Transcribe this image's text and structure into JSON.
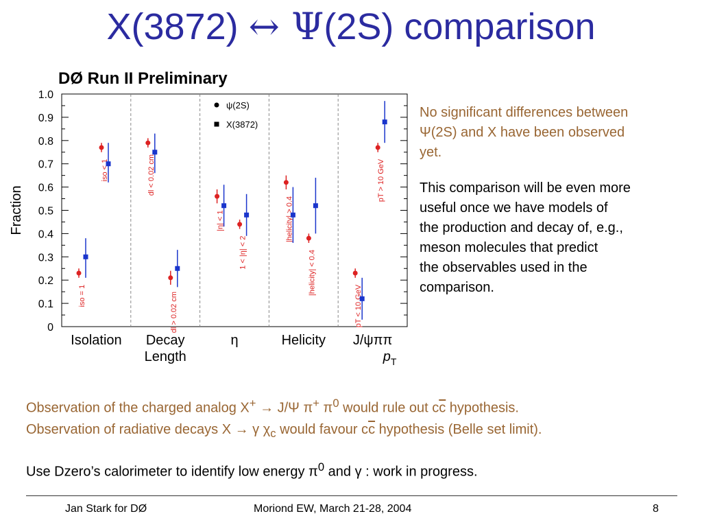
{
  "title": {
    "left": "X(3872) ",
    "arrow": "↔",
    "psi": " Ψ",
    "right": "(2S) comparison"
  },
  "colors": {
    "title": "#2b2ba0",
    "psi2s": "#dd2222",
    "x3872": "#1a35cc",
    "note": "#996633"
  },
  "chart_data": {
    "type": "scatter",
    "title": "DØ Run II Preliminary",
    "ylabel": "Fraction",
    "ylim": [
      0,
      1
    ],
    "yticks": [
      "0",
      "0.1",
      "0.2",
      "0.3",
      "0.4",
      "0.5",
      "0.6",
      "0.7",
      "0.8",
      "0.9",
      "1.0"
    ],
    "categories": [
      {
        "label1": "Isolation",
        "label2": ""
      },
      {
        "label1": "Decay",
        "label2": "Length"
      },
      {
        "label1": "η",
        "label2": ""
      },
      {
        "label1": "Helicity",
        "label2": ""
      },
      {
        "label1": "J/ψππ",
        "label2": "p",
        "label2_sub": "T"
      }
    ],
    "legend": [
      {
        "name": "ψ(2S)",
        "marker": "circle"
      },
      {
        "name": "X(3872)",
        "marker": "square"
      }
    ],
    "points": [
      {
        "series": "ψ(2S)",
        "cat": 0,
        "sub": 0,
        "y": 0.23,
        "err": [
          0.02,
          0.02
        ],
        "label": "iso = 1"
      },
      {
        "series": "X(3872)",
        "cat": 0,
        "sub": 1,
        "y": 0.3,
        "err": [
          0.09,
          0.08
        ],
        "label": ""
      },
      {
        "series": "ψ(2S)",
        "cat": 0,
        "sub": 2,
        "y": 0.77,
        "err": [
          0.02,
          0.02
        ],
        "label": "iso < 1"
      },
      {
        "series": "X(3872)",
        "cat": 0,
        "sub": 3,
        "y": 0.7,
        "err": [
          0.08,
          0.09
        ],
        "label": ""
      },
      {
        "series": "ψ(2S)",
        "cat": 1,
        "sub": 0,
        "y": 0.79,
        "err": [
          0.02,
          0.02
        ],
        "label": "dl < 0.02 cm"
      },
      {
        "series": "X(3872)",
        "cat": 1,
        "sub": 1,
        "y": 0.75,
        "err": [
          0.09,
          0.08
        ],
        "label": ""
      },
      {
        "series": "ψ(2S)",
        "cat": 1,
        "sub": 2,
        "y": 0.21,
        "err": [
          0.03,
          0.03
        ],
        "label": "dl > 0.02 cm"
      },
      {
        "series": "X(3872)",
        "cat": 1,
        "sub": 3,
        "y": 0.25,
        "err": [
          0.08,
          0.08
        ],
        "label": ""
      },
      {
        "series": "ψ(2S)",
        "cat": 2,
        "sub": 0,
        "y": 0.56,
        "err": [
          0.03,
          0.03
        ],
        "label": "|η| < 1"
      },
      {
        "series": "X(3872)",
        "cat": 2,
        "sub": 1,
        "y": 0.52,
        "err": [
          0.09,
          0.09
        ],
        "label": ""
      },
      {
        "series": "ψ(2S)",
        "cat": 2,
        "sub": 2,
        "y": 0.44,
        "err": [
          0.02,
          0.02
        ],
        "label": "1 < |η| < 2"
      },
      {
        "series": "X(3872)",
        "cat": 2,
        "sub": 3,
        "y": 0.48,
        "err": [
          0.09,
          0.09
        ],
        "label": ""
      },
      {
        "series": "ψ(2S)",
        "cat": 3,
        "sub": 0,
        "y": 0.62,
        "err": [
          0.03,
          0.03
        ],
        "label": "|helicity| > 0.4"
      },
      {
        "series": "X(3872)",
        "cat": 3,
        "sub": 1,
        "y": 0.48,
        "err": [
          0.12,
          0.12
        ],
        "label": ""
      },
      {
        "series": "ψ(2S)",
        "cat": 3,
        "sub": 2,
        "y": 0.38,
        "err": [
          0.02,
          0.02
        ],
        "label": "|helicity| < 0.4"
      },
      {
        "series": "X(3872)",
        "cat": 3,
        "sub": 3,
        "y": 0.52,
        "err": [
          0.12,
          0.12
        ],
        "label": ""
      },
      {
        "series": "ψ(2S)",
        "cat": 4,
        "sub": 0,
        "y": 0.23,
        "err": [
          0.02,
          0.02
        ],
        "label": "pT < 10 GeV"
      },
      {
        "series": "X(3872)",
        "cat": 4,
        "sub": 1,
        "y": 0.12,
        "err": [
          0.09,
          0.09
        ],
        "label": ""
      },
      {
        "series": "ψ(2S)",
        "cat": 4,
        "sub": 2,
        "y": 0.77,
        "err": [
          0.02,
          0.02
        ],
        "label": "pT > 10 GeV"
      },
      {
        "series": "X(3872)",
        "cat": 4,
        "sub": 3,
        "y": 0.88,
        "err": [
          0.09,
          0.09
        ],
        "label": ""
      }
    ]
  },
  "notes": {
    "line1": "No significant differences between",
    "line2": "Ψ(2S) and X have been observed",
    "line3": "yet.",
    "p2_1": "This comparison will be even more",
    "p2_2": "useful once we have models of",
    "p2_3": "the production and decay of, e.g.,",
    "p2_4": "meson molecules that predict",
    "p2_5": "the observables used in the",
    "p2_6": "comparison."
  },
  "bottom": {
    "obs1_a": "Observation of the charged analog X",
    "obs1_sup": "+",
    "obs1_b": " → J/Ψ π",
    "obs1_sup2": "+",
    "obs1_c": " π",
    "obs1_sup3": "0",
    "obs1_d": " would rule out c",
    "obs1_cbar": "c",
    "obs1_e": " hypothesis.",
    "obs2_a": "Observation of radiative decays X → γ χ",
    "obs2_sub": "c",
    "obs2_b": " would favour c",
    "obs2_cbar": "c",
    "obs2_c": " hypothesis (Belle set limit).",
    "use_a": "Use Dzero’s calorimeter to identify low energy π",
    "use_sup": "0",
    "use_b": " and γ : work in progress."
  },
  "footer": {
    "author": "Jan Stark for DØ",
    "conference": "Moriond EW, March 21-28, 2004",
    "page": "8"
  }
}
